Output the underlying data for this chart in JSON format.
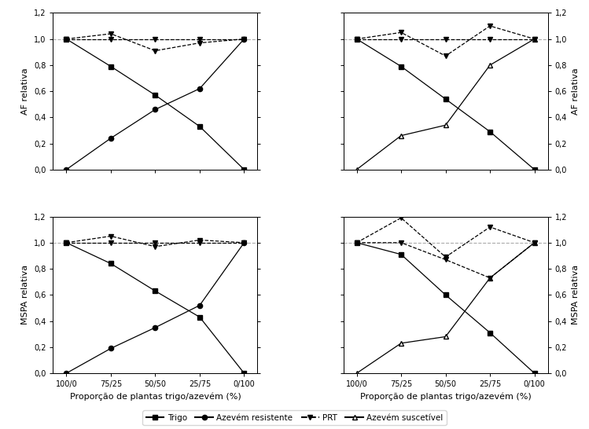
{
  "x_labels": [
    "100/0",
    "75/25",
    "50/50",
    "25/75",
    "0/100"
  ],
  "x_values": [
    0,
    1,
    2,
    3,
    4
  ],
  "top_left": {
    "trigo_pr": [
      1.0,
      0.79,
      0.57,
      0.33,
      0.0
    ],
    "azevem_pr": [
      0.0,
      0.24,
      0.46,
      0.62,
      1.0
    ],
    "trigo_prt": [
      1.0,
      1.04,
      0.91,
      0.97,
      1.0
    ],
    "azevem_prt": [
      1.0,
      1.0,
      1.0,
      1.0,
      1.0
    ]
  },
  "top_right": {
    "trigo_pr": [
      1.0,
      0.79,
      0.54,
      0.29,
      0.0
    ],
    "azevem_pr": [
      0.0,
      0.26,
      0.34,
      0.8,
      1.0
    ],
    "trigo_prt": [
      1.0,
      1.05,
      0.87,
      1.1,
      1.0
    ],
    "azevem_prt": [
      1.0,
      1.0,
      1.0,
      1.0,
      1.0
    ]
  },
  "bottom_left": {
    "trigo_pr": [
      1.0,
      0.84,
      0.63,
      0.43,
      0.0
    ],
    "azevem_pr": [
      0.0,
      0.19,
      0.35,
      0.52,
      1.0
    ],
    "trigo_prt": [
      1.0,
      1.05,
      0.97,
      1.02,
      1.0
    ],
    "azevem_prt": [
      1.0,
      1.0,
      1.0,
      1.0,
      1.0
    ]
  },
  "bottom_right": {
    "trigo_pr": [
      1.0,
      0.91,
      0.6,
      0.31,
      0.0
    ],
    "azevem_pr": [
      0.0,
      0.23,
      0.28,
      0.73,
      1.0
    ],
    "trigo_prt": [
      1.0,
      1.19,
      0.89,
      1.12,
      1.0
    ],
    "azevem_prt": [
      1.0,
      1.0,
      0.87,
      0.73,
      1.0
    ]
  },
  "ylabel_left_top": "AF relativa",
  "ylabel_right_top": "AF relativa",
  "ylabel_left_bottom": "MSPA relativa",
  "ylabel_right_bottom": "MSPA relativa",
  "xlabel": "Proporção de plantas trigo/azevém (%)",
  "ylim": [
    0.0,
    1.2
  ],
  "yticks": [
    0.0,
    0.2,
    0.4,
    0.6,
    0.8,
    1.0,
    1.2
  ],
  "fontsize_label": 8,
  "fontsize_tick": 7,
  "fontsize_legend": 7.5
}
